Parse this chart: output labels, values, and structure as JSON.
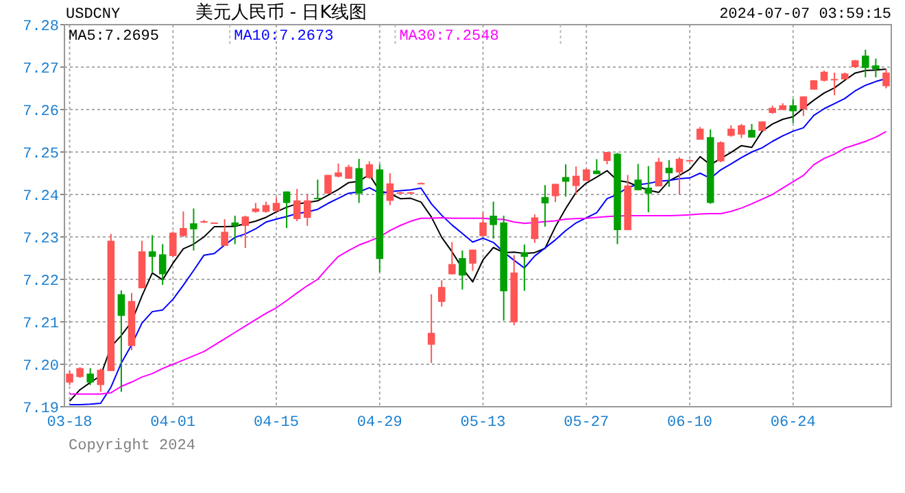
{
  "chart_data": {
    "type": "candlestick",
    "title": "美元人民币 - 日K线图",
    "annotations": [
      "USDCNY",
      "2024-07-07 03:59:15",
      "Copyright 2024"
    ],
    "categories": [
      "03-18",
      null,
      null,
      null,
      null,
      null,
      null,
      null,
      null,
      null,
      "04-01",
      null,
      null,
      null,
      null,
      null,
      null,
      null,
      null,
      null,
      "04-15",
      null,
      null,
      null,
      null,
      null,
      null,
      null,
      null,
      null,
      "04-29",
      null,
      null,
      null,
      null,
      null,
      null,
      null,
      null,
      null,
      "05-13",
      null,
      null,
      null,
      null,
      null,
      null,
      null,
      null,
      null,
      "05-27",
      null,
      null,
      null,
      null,
      null,
      null,
      null,
      null,
      null,
      "06-10",
      null,
      null,
      null,
      null,
      null,
      null,
      null,
      null,
      null,
      "06-24",
      null,
      null,
      null,
      null,
      null,
      null,
      null,
      null,
      null
    ],
    "ohlc": [
      [
        7.1957,
        7.1984,
        7.1951,
        7.1978
      ],
      [
        7.197,
        7.1993,
        7.1968,
        7.1991
      ],
      [
        7.1978,
        7.1991,
        7.1951,
        7.1957
      ],
      [
        7.1951,
        7.199,
        7.1935,
        7.1987
      ],
      [
        7.1984,
        7.2307,
        7.1984,
        7.2291
      ],
      [
        7.2165,
        7.2174,
        7.1935,
        7.2114
      ],
      [
        7.2043,
        7.2168,
        7.2033,
        7.2149
      ],
      [
        7.2179,
        7.2291,
        7.2179,
        7.2266
      ],
      [
        7.2266,
        7.2304,
        7.2217,
        7.2253
      ],
      [
        7.2259,
        7.2283,
        7.2187,
        7.2212
      ],
      [
        7.2255,
        7.2313,
        7.2253,
        7.231
      ],
      [
        7.2302,
        7.236,
        7.23,
        7.2321
      ],
      [
        7.2332,
        7.2367,
        7.2268,
        7.2318
      ],
      [
        7.2336,
        7.234,
        7.2333,
        7.2337
      ],
      [
        7.2333,
        7.2334,
        7.2333,
        7.2334
      ],
      [
        7.2279,
        7.2342,
        7.2279,
        7.2312
      ],
      [
        7.2334,
        7.235,
        7.2283,
        7.2326
      ],
      [
        7.2326,
        7.235,
        7.2274,
        7.2348
      ],
      [
        7.2359,
        7.238,
        7.2357,
        7.2367
      ],
      [
        7.2359,
        7.2383,
        7.2357,
        7.2375
      ],
      [
        7.2361,
        7.2393,
        7.2359,
        7.238
      ],
      [
        7.2407,
        7.2407,
        7.2321,
        7.238
      ],
      [
        7.2342,
        7.2413,
        7.2337,
        7.2386
      ],
      [
        7.2345,
        7.24,
        7.2326,
        7.2386
      ],
      [
        7.2392,
        7.2435,
        7.2389,
        7.2391
      ],
      [
        7.2402,
        7.2446,
        7.2402,
        7.2446
      ],
      [
        7.2442,
        7.2473,
        7.244,
        7.2452
      ],
      [
        7.2437,
        7.247,
        7.2437,
        7.2465
      ],
      [
        7.2462,
        7.2484,
        7.238,
        7.2402
      ],
      [
        7.2439,
        7.2478,
        7.2437,
        7.2471
      ],
      [
        7.2459,
        7.2471,
        7.2217,
        7.2248
      ],
      [
        7.2385,
        7.245,
        7.2375,
        7.2426
      ],
      [
        7.2404,
        7.2406,
        7.2404,
        7.2405
      ],
      [
        7.2404,
        7.2406,
        7.2404,
        7.2405
      ],
      [
        7.2426,
        7.2428,
        7.2426,
        7.2427
      ],
      [
        7.2046,
        7.2165,
        7.2003,
        7.2074
      ],
      [
        7.2147,
        7.2198,
        7.2136,
        7.2182
      ],
      [
        7.2212,
        7.2288,
        7.2212,
        7.2236
      ],
      [
        7.225,
        7.2268,
        7.2176,
        7.2209
      ],
      [
        7.2237,
        7.227,
        7.222,
        7.227
      ],
      [
        7.2302,
        7.2357,
        7.2302,
        7.2334
      ],
      [
        7.235,
        7.2383,
        7.2296,
        7.2328
      ],
      [
        7.2334,
        7.235,
        7.2103,
        7.2172
      ],
      [
        7.2099,
        7.2257,
        7.2092,
        7.2216
      ],
      [
        7.2264,
        7.2282,
        7.2173,
        7.2253
      ],
      [
        7.2295,
        7.2353,
        7.2286,
        7.2346
      ],
      [
        7.2394,
        7.2422,
        7.2324,
        7.2379
      ],
      [
        7.2396,
        7.2425,
        7.2382,
        7.2425
      ],
      [
        7.2441,
        7.2471,
        7.2395,
        7.243
      ],
      [
        7.242,
        7.2466,
        7.2401,
        7.2444
      ],
      [
        7.2432,
        7.2461,
        7.2432,
        7.2459
      ],
      [
        7.2456,
        7.2483,
        7.2448,
        7.2448
      ],
      [
        7.2479,
        7.25,
        7.2471,
        7.25
      ],
      [
        7.2496,
        7.2498,
        7.2283,
        7.2316
      ],
      [
        7.2316,
        7.2446,
        7.2316,
        7.2421
      ],
      [
        7.2435,
        7.2472,
        7.241,
        7.241
      ],
      [
        7.2416,
        7.2467,
        7.2358,
        7.2402
      ],
      [
        7.2419,
        7.2486,
        7.2419,
        7.2477
      ],
      [
        7.2463,
        7.2481,
        7.2418,
        7.245
      ],
      [
        7.2452,
        7.2488,
        7.24,
        7.2484
      ],
      [
        7.248,
        7.2482,
        7.248,
        7.2481
      ],
      [
        7.2529,
        7.2559,
        7.2529,
        7.2555
      ],
      [
        7.2535,
        7.2553,
        7.2378,
        7.238
      ],
      [
        7.2478,
        7.2525,
        7.2476,
        7.2523
      ],
      [
        7.2538,
        7.2563,
        7.2536,
        7.2555
      ],
      [
        7.2541,
        7.2566,
        7.2533,
        7.2563
      ],
      [
        7.2552,
        7.2566,
        7.2534,
        7.2534
      ],
      [
        7.255,
        7.2572,
        7.255,
        7.2572
      ],
      [
        7.2592,
        7.2609,
        7.259,
        7.2604
      ],
      [
        7.2599,
        7.2615,
        7.2599,
        7.261
      ],
      [
        7.261,
        7.2625,
        7.2568,
        7.2596
      ],
      [
        7.2601,
        7.2631,
        7.2585,
        7.2631
      ],
      [
        7.2647,
        7.2669,
        7.2647,
        7.2669
      ],
      [
        7.2668,
        7.2692,
        7.2666,
        7.2689
      ],
      [
        7.2671,
        7.2687,
        7.2634,
        7.2672
      ],
      [
        7.2671,
        7.2687,
        7.2671,
        7.2685
      ],
      [
        7.27,
        7.2717,
        7.2698,
        7.2716
      ],
      [
        7.2727,
        7.2741,
        7.2676,
        7.2698
      ],
      [
        7.2704,
        7.272,
        7.2676,
        7.2695
      ],
      [
        7.2655,
        7.2695,
        7.265,
        7.2687
      ]
    ],
    "colors": [
      "#ff5555",
      "#ff5555",
      "#00a000",
      "#ff5555",
      "#ff5555",
      "#00a000",
      "#ff5555",
      "#ff5555",
      "#00a000",
      "#00a000",
      "#ff5555",
      "#ff5555",
      "#00a000",
      "#ff5555",
      "#ff5555",
      "#ff5555",
      "#00a000",
      "#ff5555",
      "#ff5555",
      "#ff5555",
      "#ff5555",
      "#00a000",
      "#ff5555",
      "#ff5555",
      "#00a000",
      "#ff5555",
      "#ff5555",
      "#ff5555",
      "#00a000",
      "#ff5555",
      "#00a000",
      "#ff5555",
      "#ff5555",
      "#ff5555",
      "#ff5555",
      "#ff5555",
      "#ff5555",
      "#ff5555",
      "#00a000",
      "#ff5555",
      "#ff5555",
      "#00a000",
      "#00a000",
      "#ff5555",
      "#00a000",
      "#ff5555",
      "#00a000",
      "#ff5555",
      "#00a000",
      "#ff5555",
      "#ff5555",
      "#00a000",
      "#ff5555",
      "#00a000",
      "#ff5555",
      "#00a000",
      "#00a000",
      "#ff5555",
      "#00a000",
      "#ff5555",
      "#ff5555",
      "#ff5555",
      "#00a000",
      "#ff5555",
      "#ff5555",
      "#ff5555",
      "#00a000",
      "#ff5555",
      "#ff5555",
      "#ff5555",
      "#00a000",
      "#ff5555",
      "#ff5555",
      "#ff5555",
      "#ff5555",
      "#ff5555",
      "#ff5555",
      "#00a000",
      "#00a000",
      "#ff5555"
    ],
    "series": [
      {
        "type": "line",
        "name": "MA5:7.2695",
        "color": "#000000",
        "values": [
          7.1913,
          7.194,
          7.1957,
          7.1973,
          7.2041,
          7.2068,
          7.21,
          7.2161,
          7.2215,
          7.2199,
          7.2238,
          7.2272,
          7.2283,
          7.23,
          7.2324,
          7.2324,
          7.2325,
          7.2331,
          7.2337,
          7.2346,
          7.2359,
          7.237,
          7.2378,
          7.2381,
          7.2385,
          7.2398,
          7.2412,
          7.2428,
          7.2431,
          7.2447,
          7.2408,
          7.2402,
          7.239,
          7.2391,
          7.2382,
          7.2347,
          7.2299,
          7.2265,
          7.2226,
          7.2194,
          7.2246,
          7.2275,
          7.2263,
          7.2264,
          7.2261,
          7.2263,
          7.2273,
          7.2324,
          7.2367,
          7.2405,
          7.2427,
          7.2441,
          7.2456,
          7.2433,
          7.2429,
          7.2419,
          7.241,
          7.2405,
          7.2432,
          7.2445,
          7.2459,
          7.2489,
          7.247,
          7.2485,
          7.2499,
          7.2515,
          7.2511,
          7.2549,
          7.2566,
          7.2577,
          7.2583,
          7.2603,
          7.2622,
          7.2639,
          7.2651,
          7.2669,
          7.2686,
          7.2692,
          7.2693,
          7.2695
        ]
      },
      {
        "type": "line",
        "name": "MA10:7.2673",
        "color": "#0000ff",
        "values": [
          7.1905,
          7.1905,
          7.1906,
          7.1908,
          7.1946,
          7.2003,
          7.2046,
          7.2097,
          7.2124,
          7.2128,
          7.2153,
          7.2186,
          7.2221,
          7.2257,
          7.2261,
          7.2281,
          7.2299,
          7.2307,
          7.2319,
          7.2335,
          7.2342,
          7.2348,
          7.2355,
          7.2359,
          7.2365,
          7.2379,
          7.2391,
          7.2403,
          7.2406,
          7.2416,
          7.2403,
          7.2407,
          7.2409,
          7.2411,
          7.2415,
          7.2378,
          7.2351,
          7.2328,
          7.2308,
          7.2288,
          7.2297,
          7.2287,
          7.2264,
          7.2245,
          7.2227,
          7.2255,
          7.2274,
          7.2293,
          7.2315,
          7.2333,
          7.2345,
          7.2357,
          7.239,
          7.24,
          7.2417,
          7.2423,
          7.2426,
          7.2431,
          7.2433,
          7.2437,
          7.2439,
          7.245,
          7.2438,
          7.2458,
          7.2472,
          7.2487,
          7.25,
          7.251,
          7.2525,
          7.2538,
          7.2549,
          7.2557,
          7.2586,
          7.2602,
          7.2614,
          7.2626,
          7.2644,
          7.2657,
          7.2666,
          7.2673
        ]
      },
      {
        "type": "line",
        "name": "MA30:7.2548",
        "color": "#ff00ff",
        "values": [
          7.193,
          7.193,
          7.193,
          7.193,
          7.1933,
          7.1948,
          7.1958,
          7.197,
          7.1978,
          7.199,
          7.2,
          7.201,
          7.202,
          7.203,
          7.2045,
          7.206,
          7.2075,
          7.209,
          7.2105,
          7.212,
          7.2133,
          7.215,
          7.2168,
          7.2185,
          7.22,
          7.2228,
          7.2254,
          7.2268,
          7.2281,
          7.229,
          7.23,
          7.2315,
          7.2327,
          7.2337,
          7.2344,
          7.2344,
          7.2345,
          7.2344,
          7.2344,
          7.2344,
          7.2344,
          7.2342,
          7.2341,
          7.2335,
          7.2332,
          7.2334,
          7.2336,
          7.2338,
          7.2342,
          7.2343,
          7.2344,
          7.2346,
          7.2348,
          7.2349,
          7.235,
          7.235,
          7.235,
          7.235,
          7.235,
          7.2351,
          7.2352,
          7.2354,
          7.2355,
          7.2355,
          7.236,
          7.2368,
          7.2378,
          7.2389,
          7.24,
          7.2415,
          7.243,
          7.2445,
          7.247,
          7.2485,
          7.2495,
          7.2509,
          7.2517,
          7.2525,
          7.2535,
          7.2548
        ]
      }
    ],
    "ylim": [
      7.19,
      7.28
    ],
    "yticks": [
      7.19,
      {
        "value": 7.2,
        "label": "7.20"
      },
      7.21,
      7.22,
      7.23,
      7.24,
      7.25,
      7.26,
      7.27,
      7.28
    ],
    "grid": true,
    "legend": "top"
  }
}
